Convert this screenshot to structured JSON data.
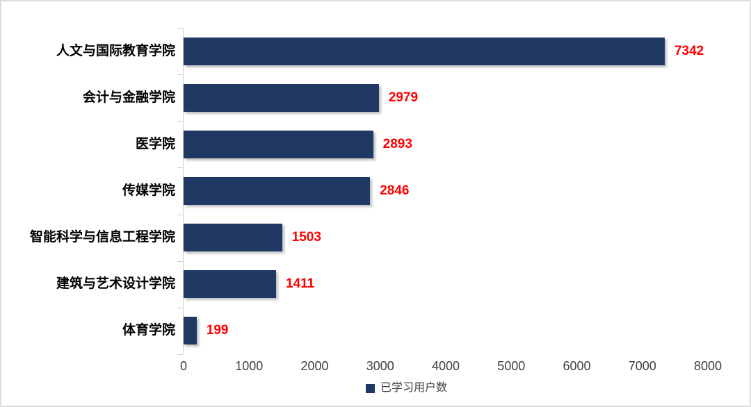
{
  "chart_data": {
    "type": "bar",
    "orientation": "horizontal",
    "title": "",
    "categories": [
      "人文与国际教育学院",
      "会计与金融学院",
      "医学院",
      "传媒学院",
      "智能科学与信息工程学院",
      "建筑与艺术设计学院",
      "体育学院"
    ],
    "values": [
      7342,
      2979,
      2893,
      2846,
      1503,
      1411,
      199
    ],
    "value_labels": [
      "7342",
      "2979",
      "2893",
      "2846",
      "1503",
      "1411",
      "199"
    ],
    "x_ticks": [
      0,
      1000,
      2000,
      3000,
      4000,
      5000,
      6000,
      7000,
      8000
    ],
    "x_tick_labels": [
      "0",
      "1000",
      "2000",
      "3000",
      "4000",
      "5000",
      "6000",
      "7000",
      "8000"
    ],
    "xlim": [
      0,
      8000
    ],
    "grid": false,
    "legend": {
      "label": "已学习用户数",
      "position": "bottom"
    },
    "colors": {
      "bar": "#1F3864",
      "value_label": "#FF0000",
      "axis_line": "#CFCFCF",
      "tick_label": "#404040",
      "category_label": "#000000",
      "legend_text": "#404040",
      "frame_border": "#DCDCDC",
      "background": "#FFFFFF"
    }
  }
}
